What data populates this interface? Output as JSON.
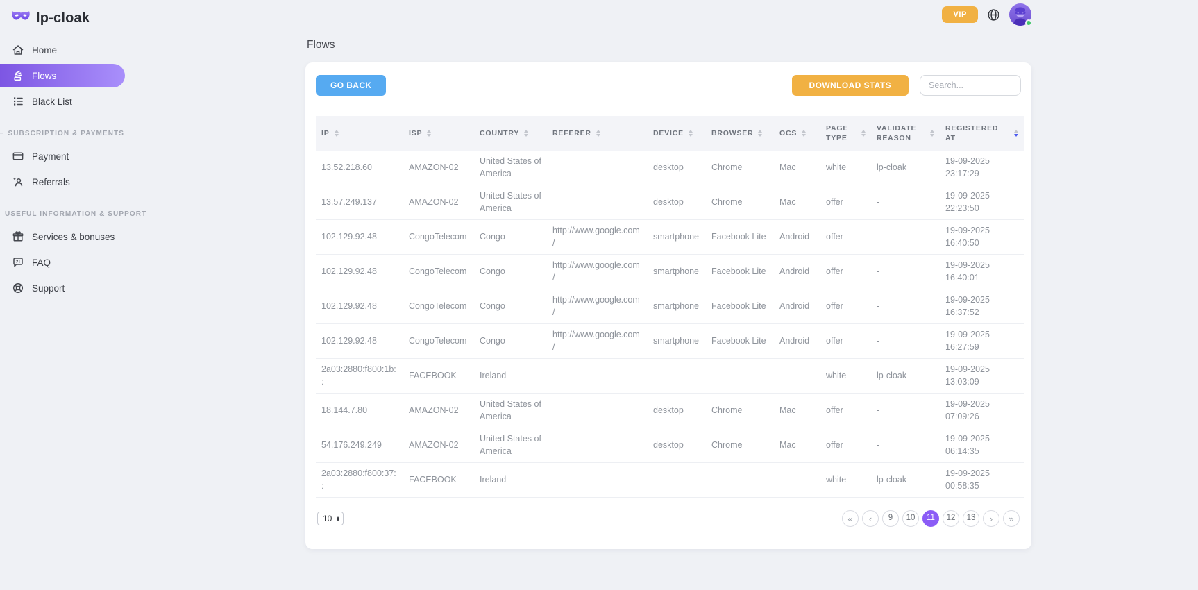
{
  "brand": {
    "name": "lp-cloak"
  },
  "sidebar": {
    "sections": [
      {
        "items": [
          {
            "label": "Home"
          },
          {
            "label": "Flows",
            "active": true
          },
          {
            "label": "Black List"
          }
        ]
      },
      {
        "header": "SUBSCRIPTION & PAYMENTS",
        "items": [
          {
            "label": "Payment"
          },
          {
            "label": "Referrals"
          }
        ]
      },
      {
        "header": "USEFUL INFORMATION & SUPPORT",
        "items": [
          {
            "label": "Services & bonuses"
          },
          {
            "label": "FAQ"
          },
          {
            "label": "Support"
          }
        ]
      }
    ]
  },
  "topbar": {
    "vip_label": "VIP"
  },
  "page": {
    "title": "Flows"
  },
  "toolbar": {
    "go_back_label": "GO BACK",
    "download_stats_label": "DOWNLOAD STATS",
    "search_placeholder": "Search..."
  },
  "table": {
    "columns": [
      {
        "label": "IP"
      },
      {
        "label": "ISP"
      },
      {
        "label": "COUNTRY"
      },
      {
        "label": "REFERER"
      },
      {
        "label": "DEVICE"
      },
      {
        "label": "BROWSER"
      },
      {
        "label": "OCS"
      },
      {
        "label": "PAGE TYPE"
      },
      {
        "label": "VALIDATE REASON"
      },
      {
        "label": "REGISTERED AT",
        "sort_active": true
      }
    ],
    "rows": [
      {
        "ip": "13.52.218.60",
        "isp": "AMAZON-02",
        "country": "United States of America",
        "referer": "",
        "device": "desktop",
        "browser": "Chrome",
        "ocs": "Mac",
        "page_type": "white",
        "validate_reason": "lp-cloak",
        "registered_at": "19-09-2025 23:17:29"
      },
      {
        "ip": "13.57.249.137",
        "isp": "AMAZON-02",
        "country": "United States of America",
        "referer": "",
        "device": "desktop",
        "browser": "Chrome",
        "ocs": "Mac",
        "page_type": "offer",
        "validate_reason": "-",
        "registered_at": "19-09-2025 22:23:50"
      },
      {
        "ip": "102.129.92.48",
        "isp": "CongoTelecom",
        "country": "Congo",
        "referer": "http://www.google.com/",
        "device": "smartphone",
        "browser": "Facebook Lite",
        "ocs": "Android",
        "page_type": "offer",
        "validate_reason": "-",
        "registered_at": "19-09-2025 16:40:50"
      },
      {
        "ip": "102.129.92.48",
        "isp": "CongoTelecom",
        "country": "Congo",
        "referer": "http://www.google.com/",
        "device": "smartphone",
        "browser": "Facebook Lite",
        "ocs": "Android",
        "page_type": "offer",
        "validate_reason": "-",
        "registered_at": "19-09-2025 16:40:01"
      },
      {
        "ip": "102.129.92.48",
        "isp": "CongoTelecom",
        "country": "Congo",
        "referer": "http://www.google.com/",
        "device": "smartphone",
        "browser": "Facebook Lite",
        "ocs": "Android",
        "page_type": "offer",
        "validate_reason": "-",
        "registered_at": "19-09-2025 16:37:52"
      },
      {
        "ip": "102.129.92.48",
        "isp": "CongoTelecom",
        "country": "Congo",
        "referer": "http://www.google.com/",
        "device": "smartphone",
        "browser": "Facebook Lite",
        "ocs": "Android",
        "page_type": "offer",
        "validate_reason": "-",
        "registered_at": "19-09-2025 16:27:59"
      },
      {
        "ip": "2a03:2880:f800:1b::",
        "isp": "FACEBOOK",
        "country": "Ireland",
        "referer": "",
        "device": "",
        "browser": "",
        "ocs": "",
        "page_type": "white",
        "validate_reason": "lp-cloak",
        "registered_at": "19-09-2025 13:03:09"
      },
      {
        "ip": "18.144.7.80",
        "isp": "AMAZON-02",
        "country": "United States of America",
        "referer": "",
        "device": "desktop",
        "browser": "Chrome",
        "ocs": "Mac",
        "page_type": "offer",
        "validate_reason": "-",
        "registered_at": "19-09-2025 07:09:26"
      },
      {
        "ip": "54.176.249.249",
        "isp": "AMAZON-02",
        "country": "United States of America",
        "referer": "",
        "device": "desktop",
        "browser": "Chrome",
        "ocs": "Mac",
        "page_type": "offer",
        "validate_reason": "-",
        "registered_at": "19-09-2025 06:14:35"
      },
      {
        "ip": "2a03:2880:f800:37::",
        "isp": "FACEBOOK",
        "country": "Ireland",
        "referer": "",
        "device": "",
        "browser": "",
        "ocs": "",
        "page_type": "white",
        "validate_reason": "lp-cloak",
        "registered_at": "19-09-2025 00:58:35"
      }
    ]
  },
  "pagination": {
    "page_size": "10",
    "first": "«",
    "prev": "‹",
    "next": "›",
    "last": "»",
    "pages": [
      "9",
      "10",
      "11",
      "12",
      "13"
    ],
    "active_page": "11"
  },
  "colors": {
    "accent_purple": "#8b5cf6",
    "sidebar_active_start": "#7d56e3",
    "sidebar_active_end": "#a98ffb",
    "button_blue": "#56aaf1",
    "button_orange": "#f1b143",
    "sort_active": "#4d5bf0",
    "online_green": "#42c76a",
    "logo_purple": "#7a5af5"
  }
}
